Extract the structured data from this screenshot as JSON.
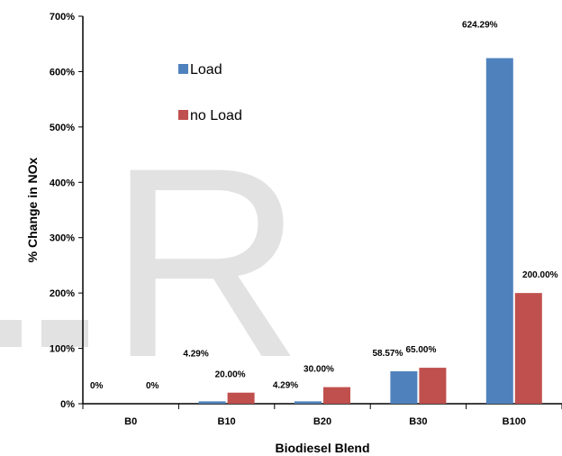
{
  "chart_data": {
    "type": "bar",
    "categories": [
      "B0",
      "B10",
      "B20",
      "B30",
      "B100"
    ],
    "series": [
      {
        "name": "Load",
        "values": [
          0,
          4.29,
          4.29,
          58.57,
          624.29
        ],
        "labels": [
          "0%",
          "4.29%",
          "4.29%",
          "58.57%",
          "624.29%"
        ],
        "color": "#4f81bd"
      },
      {
        "name": "no Load",
        "values": [
          0,
          20.0,
          30.0,
          65.0,
          200.0
        ],
        "labels": [
          "0%",
          "20.00%",
          "30.00%",
          "65.00%",
          "200.00%"
        ],
        "color": "#c0504d"
      }
    ],
    "xlabel": "Biodiesel Blend",
    "ylabel": "% Change in NOx",
    "ylim": [
      0,
      700
    ],
    "yticks": [
      "0%",
      "100%",
      "200%",
      "300%",
      "400%",
      "500%",
      "600%",
      "700%"
    ],
    "grid": false,
    "legend_position": "top-left inside plot",
    "watermark": "R"
  }
}
